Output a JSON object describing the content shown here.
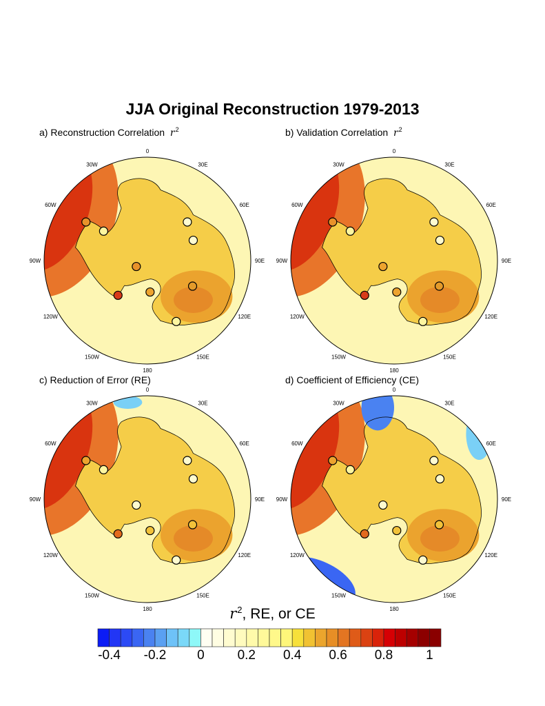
{
  "title": "JJA Original Reconstruction 1979-2013",
  "panels": [
    {
      "label": "a) Reconstruction Correlation",
      "symbol": "r",
      "sup": "2",
      "stations": [
        "#e8922a",
        "#fdf6a0",
        "#fefbd0",
        "#fefbd0",
        "#e8922a",
        "#e39a2a",
        "#eda32e",
        "#d83a1a",
        "#fdf6a0"
      ],
      "red_wedge": "strong",
      "negative_regions": []
    },
    {
      "label": "b) Validation Correlation",
      "symbol": "r",
      "sup": "2",
      "stations": [
        "#e8922a",
        "#fdf6a0",
        "#fefbd0",
        "#fefbd0",
        "#eda32e",
        "#e39a2a",
        "#eda32e",
        "#d83a1a",
        "#fdf6a0"
      ],
      "red_wedge": "strong",
      "negative_regions": []
    },
    {
      "label": "c) Reduction of Error (RE)",
      "symbol": "",
      "sup": "",
      "stations": [
        "#eda32e",
        "#fdf6a0",
        "#fefbd0",
        "#fefbd0",
        "#fefbd0",
        "#f2c23a",
        "#f2c23a",
        "#e36a1e",
        "#fefbd0"
      ],
      "red_wedge": "strong",
      "negative_regions": [
        "near 0"
      ]
    },
    {
      "label": "d) Coefficient of Efficiency (CE)",
      "symbol": "",
      "sup": "",
      "stations": [
        "#eda32e",
        "#fdf6a0",
        "#fefbd0",
        "#fefbd0",
        "#fefbd0",
        "#f2c23a",
        "#f2c23a",
        "#e36a1e",
        "#fefbd0"
      ],
      "red_wedge": "strong",
      "negative_regions": [
        "near 0",
        "near 30E-60E",
        "120W-150W"
      ]
    }
  ],
  "lon_labels": [
    "0",
    "30E",
    "60E",
    "90E",
    "120E",
    "150E",
    "180",
    "150W",
    "120W",
    "90W",
    "60W",
    "30W"
  ],
  "colorbar": {
    "title_symbol": "r",
    "title_sup": "2",
    "title_rest": ", RE, or CE",
    "levels_min": -0.4,
    "levels_max": 1.0,
    "step": 0.05,
    "tick_labels": [
      "-0.4",
      "-0.2",
      "0",
      "0.2",
      "0.4",
      "0.6",
      "0.8",
      "1"
    ],
    "colors": [
      "#0b1cf5",
      "#2236f5",
      "#2c4af5",
      "#3a66f3",
      "#4a82f1",
      "#5aa0f2",
      "#6ec2f8",
      "#7ad8f8",
      "#8ef8f8",
      "#fffef2",
      "#fffde2",
      "#fffcd0",
      "#fffbbe",
      "#fffaaa",
      "#fff99a",
      "#fff88a",
      "#fef67a",
      "#f7e03a",
      "#f1c232",
      "#eba52d",
      "#e78e26",
      "#e37522",
      "#df5b18",
      "#db4212",
      "#d9230a",
      "#d60004",
      "#bd0000",
      "#a50000",
      "#8c0000",
      "#8a0000"
    ]
  }
}
